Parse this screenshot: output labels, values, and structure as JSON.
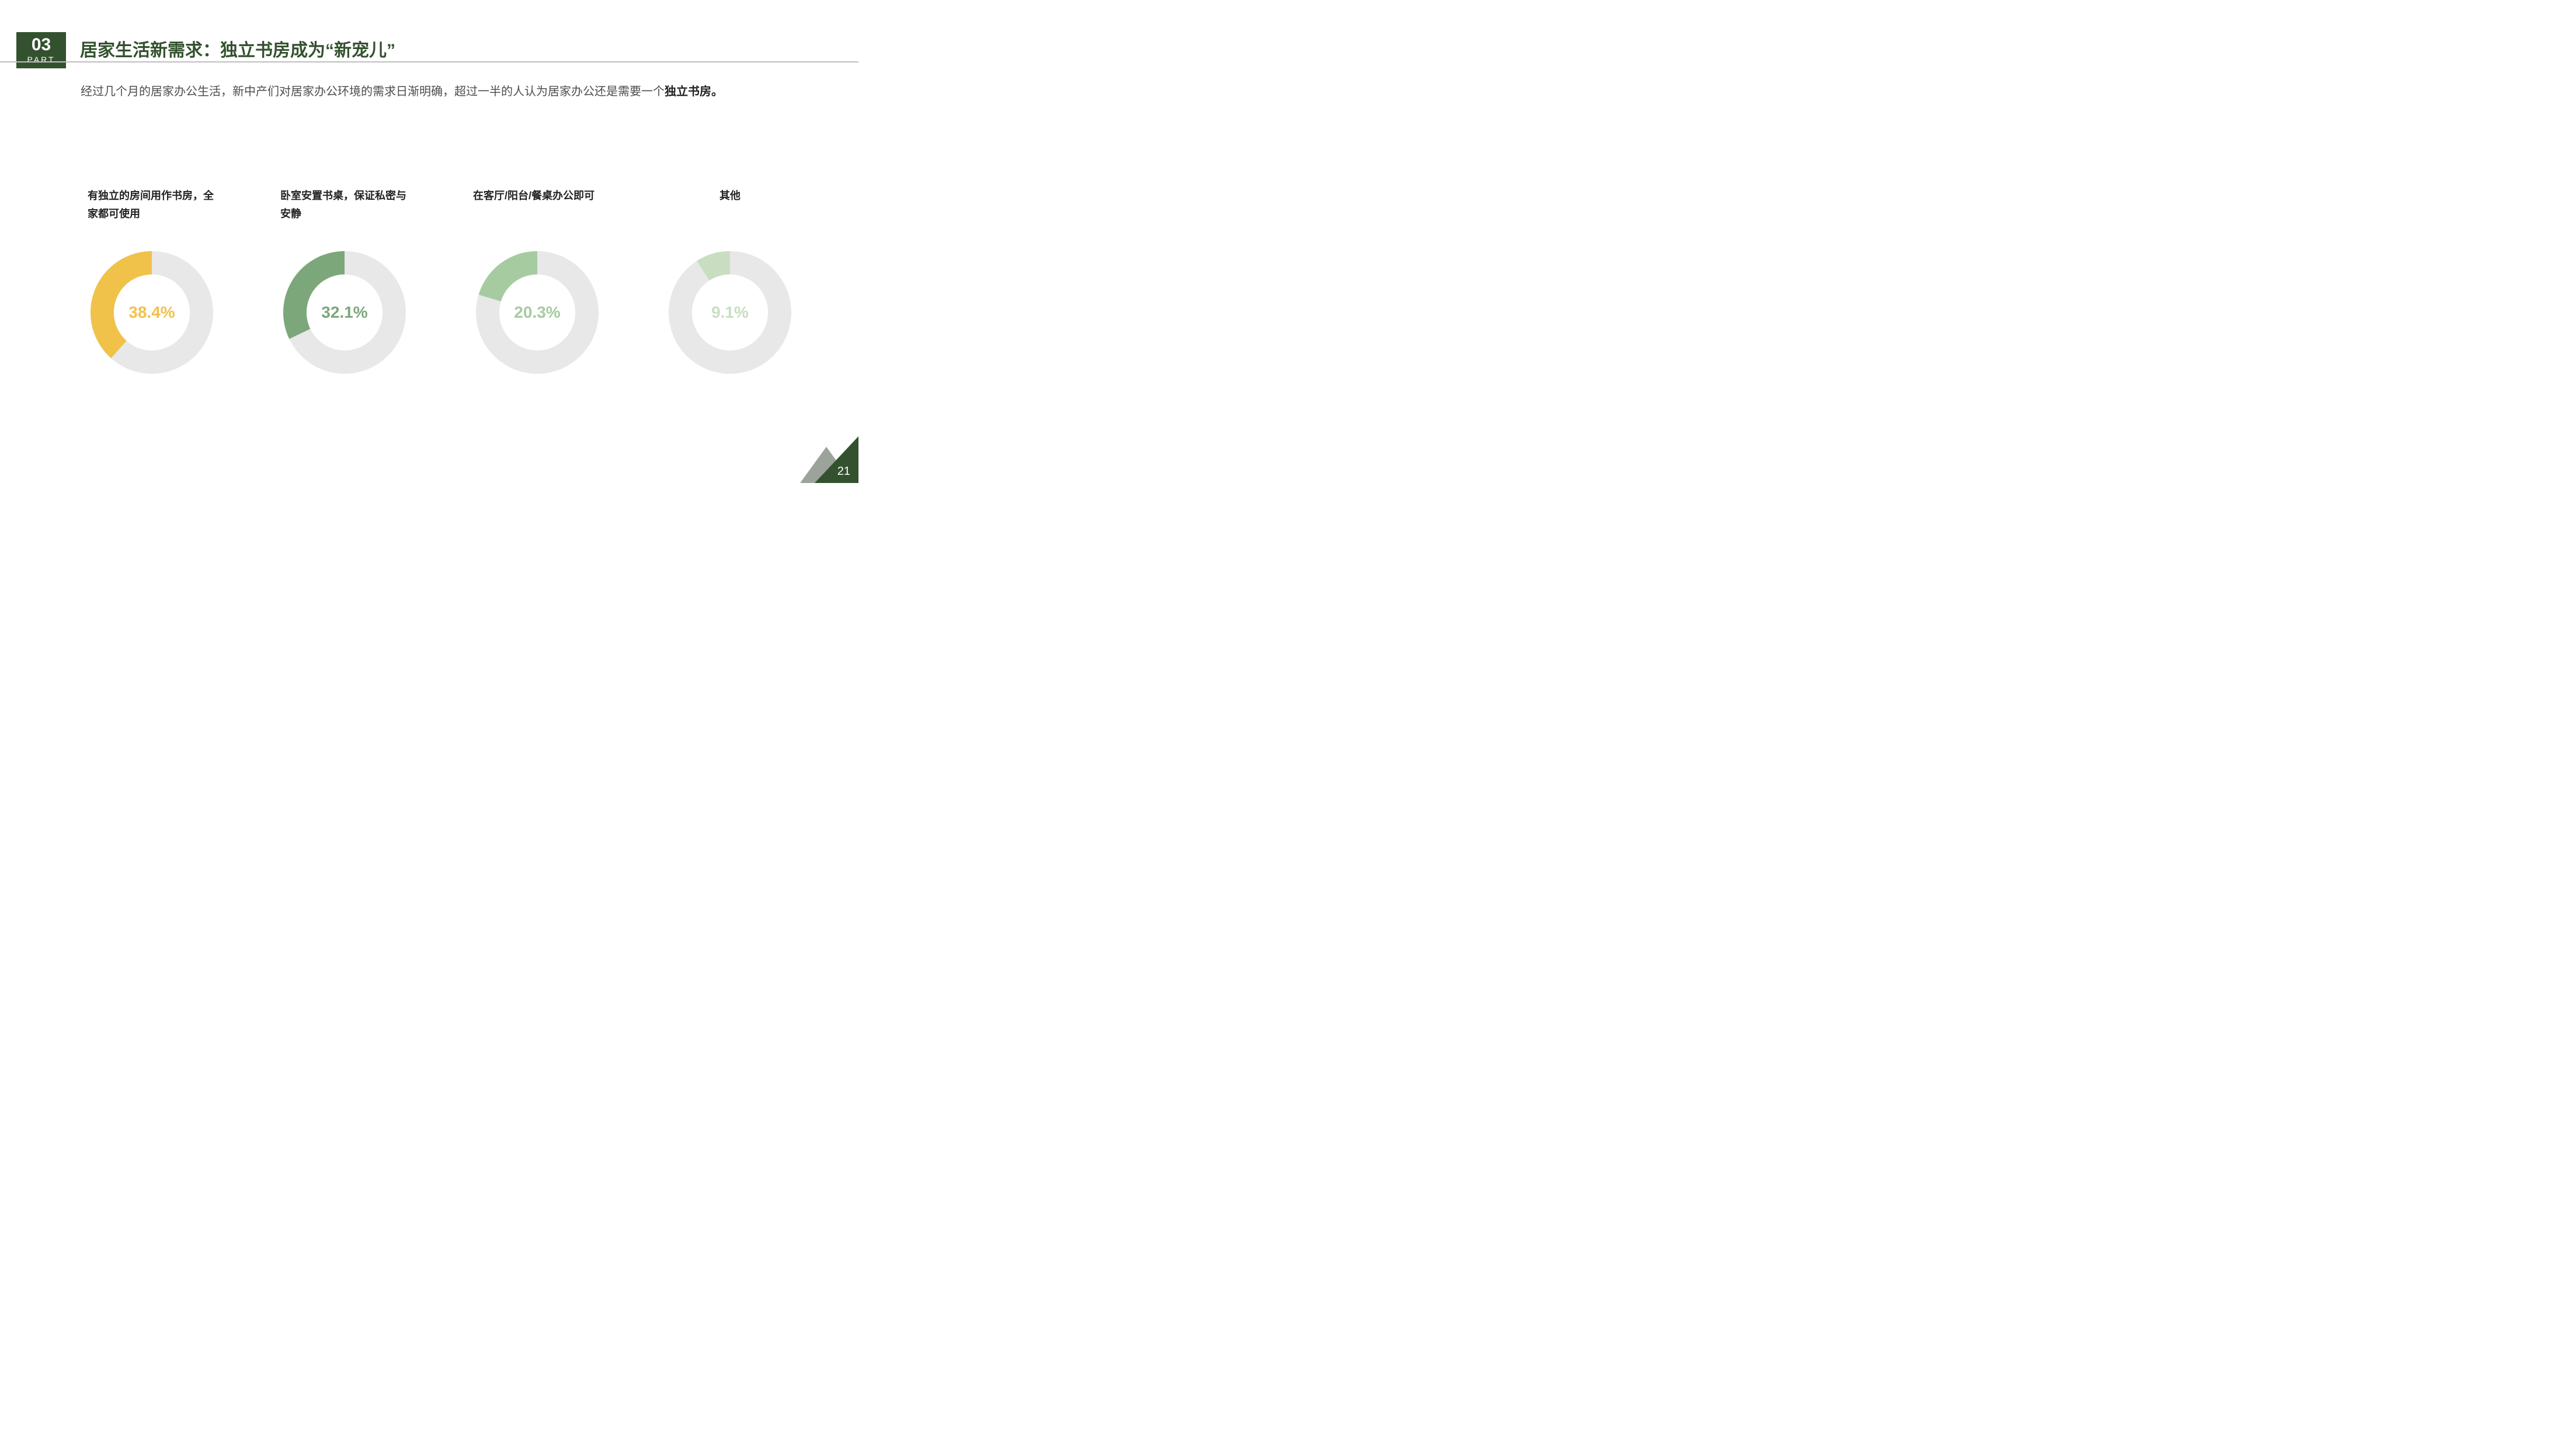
{
  "part": {
    "number": "03",
    "label": "PART",
    "bg": "#33512e"
  },
  "title": {
    "text": "居家生活新需求：独立书房成为“新宠儿”",
    "color": "#33512e"
  },
  "divider_color": "#bfbfbf",
  "subtitle": {
    "text_before": "经过几个月的居家办公生活，新中产们对居家办公环境的需求日渐明确，超过一半的人认为居家办公还是需要一个",
    "bold": "独立书房。",
    "color": "#4d4d4d"
  },
  "donut": {
    "type": "donut",
    "track_color": "#e7e8e7",
    "outer_r": 100,
    "inner_r": 62,
    "start_angle_deg": 0,
    "label_fontsize": 18,
    "value_fontsize": 28,
    "items": [
      {
        "label": "有独立的房间用作书房，全家都可使用",
        "value": 38.4,
        "display": "38.4%",
        "color": "#f0c24a"
      },
      {
        "label": "卧室安置书桌，保证私密与安静",
        "value": 32.1,
        "display": "32.1%",
        "color": "#7ca77a"
      },
      {
        "label": "在客厅/阳台/餐桌办公即可",
        "value": 20.3,
        "display": "20.3%",
        "color": "#a6cba1"
      },
      {
        "label": "其他",
        "value": 9.1,
        "display": "9.1%",
        "color": "#c9dec0"
      }
    ]
  },
  "footer": {
    "page": "21",
    "triangle_back": "#9ba39b",
    "triangle_front": "#33512e"
  }
}
